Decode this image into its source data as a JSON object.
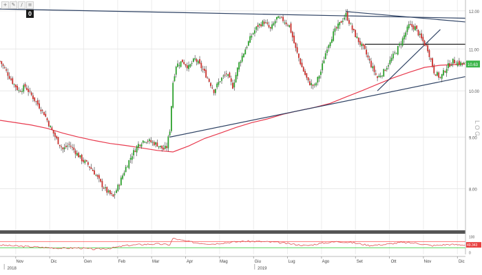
{
  "toolbar": {
    "icons": [
      "crosshair-icon",
      "pencil-icon",
      "line-icon",
      "menu-icon"
    ],
    "glyphs": [
      "+",
      "✎",
      "/",
      "≡"
    ],
    "badge": "0"
  },
  "colors": {
    "candle_up": "#2ca02c",
    "candle_down": "#c9302c",
    "ma": "#e8394d",
    "trendline": "#2d4163",
    "horizontal": "#222222",
    "price_badge": "#3bb54a",
    "osc_green": "#00c000",
    "osc_red": "#ff3030"
  },
  "chart_data": [
    {
      "type": "candlestick",
      "log_scale": true,
      "y_axis_label": "LOG",
      "y_ticks": [
        "12.00",
        "11.00",
        "10.00",
        "9.00",
        "8.00"
      ],
      "y_tick_values": [
        12,
        11,
        10,
        9,
        8
      ],
      "ylim": [
        7.3,
        12.3
      ],
      "x_ticks": [
        "Nov",
        "Dic",
        "Gen",
        "Feb",
        "Mar",
        "Apr",
        "Mag",
        "Giu",
        "Lug",
        "Ago",
        "Set",
        "Ott",
        "Nov",
        "Dic"
      ],
      "year_labels": [
        "2018",
        "2019"
      ],
      "last_price": "10.63",
      "close_path": [
        [
          0,
          10.7
        ],
        [
          4,
          10.45
        ],
        [
          8,
          10.2
        ],
        [
          12,
          10.0
        ],
        [
          16,
          10.1
        ],
        [
          20,
          9.9
        ],
        [
          24,
          9.7
        ],
        [
          28,
          9.5
        ],
        [
          32,
          9.2
        ],
        [
          36,
          8.95
        ],
        [
          40,
          8.75
        ],
        [
          44,
          8.85
        ],
        [
          48,
          8.7
        ],
        [
          52,
          8.55
        ],
        [
          56,
          8.45
        ],
        [
          60,
          8.3
        ],
        [
          64,
          8.1
        ],
        [
          68,
          7.95
        ],
        [
          72,
          7.85
        ],
        [
          76,
          8.1
        ],
        [
          80,
          8.4
        ],
        [
          84,
          8.65
        ],
        [
          88,
          8.85
        ],
        [
          92,
          8.95
        ],
        [
          96,
          8.9
        ],
        [
          100,
          8.85
        ],
        [
          104,
          8.75
        ],
        [
          106,
          8.8
        ],
        [
          108,
          9.15
        ],
        [
          110,
          10.2
        ],
        [
          112,
          10.6
        ],
        [
          116,
          10.7
        ],
        [
          120,
          10.55
        ],
        [
          124,
          10.75
        ],
        [
          128,
          10.55
        ],
        [
          132,
          10.3
        ],
        [
          136,
          10.0
        ],
        [
          140,
          10.25
        ],
        [
          144,
          10.4
        ],
        [
          148,
          10.1
        ],
        [
          152,
          10.65
        ],
        [
          156,
          11.0
        ],
        [
          160,
          11.35
        ],
        [
          164,
          11.6
        ],
        [
          168,
          11.7
        ],
        [
          172,
          11.5
        ],
        [
          176,
          11.8
        ],
        [
          180,
          11.75
        ],
        [
          184,
          11.6
        ],
        [
          188,
          11.0
        ],
        [
          192,
          10.55
        ],
        [
          196,
          10.2
        ],
        [
          200,
          10.1
        ],
        [
          204,
          10.45
        ],
        [
          208,
          11.05
        ],
        [
          212,
          11.4
        ],
        [
          216,
          11.65
        ],
        [
          220,
          11.9
        ],
        [
          224,
          11.5
        ],
        [
          228,
          11.2
        ],
        [
          232,
          10.95
        ],
        [
          236,
          10.6
        ],
        [
          240,
          10.3
        ],
        [
          244,
          10.45
        ],
        [
          248,
          10.7
        ],
        [
          252,
          10.95
        ],
        [
          256,
          11.25
        ],
        [
          260,
          11.6
        ],
        [
          264,
          11.55
        ],
        [
          268,
          11.25
        ],
        [
          272,
          11.0
        ],
        [
          276,
          10.45
        ],
        [
          280,
          10.3
        ],
        [
          284,
          10.55
        ],
        [
          288,
          10.7
        ],
        [
          292,
          10.65
        ],
        [
          296,
          10.63
        ]
      ],
      "moving_average": [
        [
          0,
          9.35
        ],
        [
          10,
          9.3
        ],
        [
          20,
          9.25
        ],
        [
          30,
          9.18
        ],
        [
          40,
          9.08
        ],
        [
          50,
          9.0
        ],
        [
          60,
          8.93
        ],
        [
          70,
          8.87
        ],
        [
          80,
          8.83
        ],
        [
          90,
          8.78
        ],
        [
          100,
          8.73
        ],
        [
          110,
          8.7
        ],
        [
          120,
          8.82
        ],
        [
          130,
          8.97
        ],
        [
          140,
          9.08
        ],
        [
          150,
          9.2
        ],
        [
          160,
          9.3
        ],
        [
          170,
          9.38
        ],
        [
          180,
          9.48
        ],
        [
          190,
          9.56
        ],
        [
          200,
          9.63
        ],
        [
          210,
          9.72
        ],
        [
          220,
          9.86
        ],
        [
          230,
          10.0
        ],
        [
          240,
          10.15
        ],
        [
          250,
          10.3
        ],
        [
          260,
          10.43
        ],
        [
          270,
          10.55
        ],
        [
          280,
          10.6
        ],
        [
          296,
          10.63
        ]
      ],
      "trendlines": [
        {
          "from": [
            0,
            12.05
          ],
          "to": [
            296,
            11.8
          ]
        },
        {
          "from": [
            108,
            9.0
          ],
          "to": [
            296,
            10.33
          ]
        },
        {
          "from": [
            220,
            11.98
          ],
          "to": [
            296,
            11.7
          ]
        },
        {
          "from": [
            240,
            10.0
          ],
          "to": [
            280,
            11.5
          ]
        }
      ],
      "horizontal_lines": [
        11.12
      ]
    },
    {
      "type": "line",
      "name_label": "",
      "y_ticks": [
        "100",
        "0"
      ],
      "y_tick_values": [
        100,
        0
      ],
      "ylim": [
        -10,
        110
      ],
      "last_value": "49.343",
      "reference_levels": [
        70,
        30
      ],
      "values": [
        [
          0,
          48
        ],
        [
          10,
          42
        ],
        [
          20,
          38
        ],
        [
          30,
          32
        ],
        [
          40,
          28
        ],
        [
          50,
          30
        ],
        [
          60,
          22
        ],
        [
          70,
          28
        ],
        [
          80,
          45
        ],
        [
          90,
          52
        ],
        [
          100,
          55
        ],
        [
          108,
          50
        ],
        [
          110,
          90
        ],
        [
          115,
          78
        ],
        [
          125,
          62
        ],
        [
          135,
          55
        ],
        [
          145,
          64
        ],
        [
          155,
          72
        ],
        [
          165,
          70
        ],
        [
          175,
          66
        ],
        [
          185,
          55
        ],
        [
          195,
          44
        ],
        [
          205,
          60
        ],
        [
          215,
          70
        ],
        [
          225,
          62
        ],
        [
          235,
          46
        ],
        [
          245,
          52
        ],
        [
          255,
          64
        ],
        [
          265,
          60
        ],
        [
          275,
          44
        ],
        [
          285,
          52
        ],
        [
          296,
          49
        ]
      ]
    }
  ]
}
